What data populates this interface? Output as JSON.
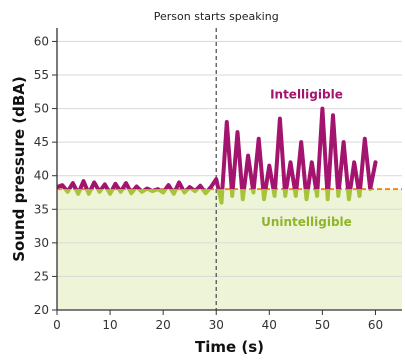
{
  "chart_data": {
    "type": "line",
    "title": "",
    "xlabel": "Time (s)",
    "ylabel": "Sound pressure (dBA)",
    "xlim": [
      0,
      65
    ],
    "ylim": [
      20,
      62
    ],
    "x_ticks": [
      0,
      10,
      20,
      30,
      40,
      50,
      60
    ],
    "y_ticks": [
      20,
      25,
      30,
      35,
      40,
      45,
      50,
      55,
      60
    ],
    "grid": "horizontal",
    "annotations": {
      "event_label": "Person starts speaking",
      "event_x": 30,
      "threshold": 38,
      "upper_label": "Intelligible",
      "lower_label": "Unintelligible"
    },
    "colors": {
      "signal_above": "#a3146e",
      "signal_below": "#a6c43a",
      "threshold_line": "#f08a1c",
      "unintelligible_fill": "#eef4d8",
      "upper_label": "#a3146e",
      "lower_label": "#8fb52a"
    },
    "series": [
      {
        "x": [
          0,
          1,
          2,
          3,
          4,
          5,
          6,
          7,
          8,
          9,
          10,
          11,
          12,
          13,
          14,
          15,
          16,
          17,
          18,
          19,
          20,
          21,
          22,
          23,
          24,
          25,
          26,
          27,
          28,
          29,
          30,
          31,
          32,
          33,
          34,
          35,
          36,
          37,
          38,
          39,
          40,
          41,
          42,
          43,
          44,
          45,
          46,
          47,
          48,
          49,
          50,
          51,
          52,
          53,
          54,
          55,
          56,
          57,
          58,
          59,
          60
        ],
        "values": [
          38.3,
          38.6,
          37.6,
          38.9,
          37.3,
          39.2,
          37.3,
          39.0,
          37.6,
          38.7,
          37.3,
          38.8,
          37.6,
          38.9,
          37.4,
          38.4,
          37.6,
          38.1,
          37.7,
          38.0,
          37.5,
          38.6,
          37.3,
          39.0,
          37.5,
          38.3,
          37.7,
          38.5,
          37.4,
          38.3,
          39.5,
          36.0,
          48.0,
          37.0,
          46.5,
          36.5,
          43.0,
          37.5,
          45.5,
          36.5,
          41.5,
          37.0,
          48.5,
          37.0,
          42.0,
          37.0,
          45.0,
          36.5,
          42.0,
          37.0,
          50.0,
          36.5,
          49.0,
          37.0,
          45.0,
          36.5,
          42.0,
          37.0,
          45.5,
          38.0,
          42.0
        ]
      }
    ]
  }
}
